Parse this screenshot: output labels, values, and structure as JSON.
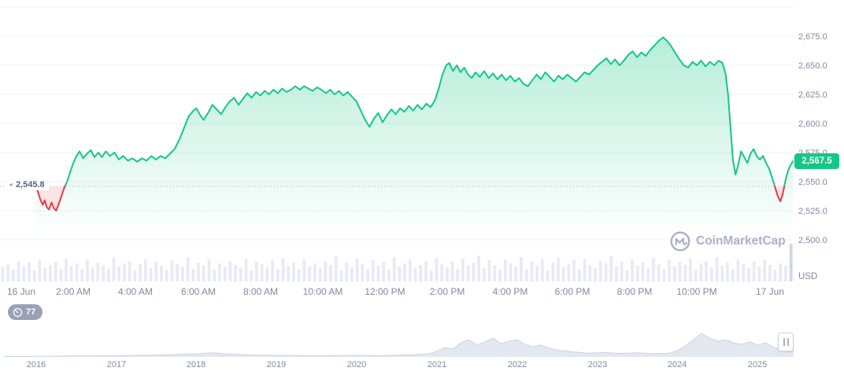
{
  "chart_data": {
    "type": "area",
    "unit": "USD",
    "last_price": 2567.5,
    "last_price_label": "2,567.5",
    "open_price": 2545.8,
    "open_price_label": "2,545.8",
    "legend_position": "none",
    "grid": true,
    "ylim": [
      2496.6,
      2706.1
    ],
    "xlim_hours": [
      -0.35,
      25.1
    ],
    "yticks": [
      {
        "value": 2675,
        "label": "2,675.0"
      },
      {
        "value": 2650,
        "label": "2,650.0"
      },
      {
        "value": 2625,
        "label": "2,625.0"
      },
      {
        "value": 2600,
        "label": "2,600.0"
      },
      {
        "value": 2575,
        "label": "2,575.0"
      },
      {
        "value": 2550,
        "label": "2,550.0"
      },
      {
        "value": 2525,
        "label": "2,525.0"
      },
      {
        "value": 2500,
        "label": "2,500.0"
      }
    ],
    "ygrid": [
      2700,
      2675,
      2650,
      2625,
      2600,
      2575,
      2550,
      2525,
      2500
    ],
    "xticks": [
      {
        "t": 0.32,
        "label": "16 Jun"
      },
      {
        "t": 2,
        "label": "2:00 AM"
      },
      {
        "t": 4,
        "label": "4:00 AM"
      },
      {
        "t": 6,
        "label": "6:00 AM"
      },
      {
        "t": 8,
        "label": "8:00 AM"
      },
      {
        "t": 10,
        "label": "10:00 AM"
      },
      {
        "t": 12,
        "label": "12:00 PM"
      },
      {
        "t": 14,
        "label": "2:00 PM"
      },
      {
        "t": 16,
        "label": "4:00 PM"
      },
      {
        "t": 18,
        "label": "6:00 PM"
      },
      {
        "t": 20,
        "label": "8:00 PM"
      },
      {
        "t": 22,
        "label": "10:00 PM"
      },
      {
        "t": 24.35,
        "label": "17 Jun"
      }
    ],
    "series": [
      [
        0.8,
        2546
      ],
      [
        0.88,
        2540
      ],
      [
        0.95,
        2534
      ],
      [
        1.02,
        2530
      ],
      [
        1.08,
        2534
      ],
      [
        1.15,
        2528
      ],
      [
        1.22,
        2526
      ],
      [
        1.3,
        2532
      ],
      [
        1.38,
        2527
      ],
      [
        1.45,
        2525
      ],
      [
        1.52,
        2530
      ],
      [
        1.6,
        2536
      ],
      [
        1.7,
        2544
      ],
      [
        1.8,
        2550
      ],
      [
        1.9,
        2558
      ],
      [
        2.0,
        2566
      ],
      [
        2.1,
        2572
      ],
      [
        2.2,
        2576
      ],
      [
        2.32,
        2570
      ],
      [
        2.44,
        2574
      ],
      [
        2.56,
        2577
      ],
      [
        2.68,
        2571
      ],
      [
        2.8,
        2575
      ],
      [
        2.92,
        2571
      ],
      [
        3.04,
        2576
      ],
      [
        3.18,
        2572
      ],
      [
        3.32,
        2575
      ],
      [
        3.46,
        2569
      ],
      [
        3.6,
        2572
      ],
      [
        3.75,
        2568
      ],
      [
        3.9,
        2570
      ],
      [
        4.05,
        2567
      ],
      [
        4.2,
        2570
      ],
      [
        4.35,
        2568
      ],
      [
        4.5,
        2572
      ],
      [
        4.65,
        2569
      ],
      [
        4.8,
        2572
      ],
      [
        4.95,
        2570
      ],
      [
        5.1,
        2574
      ],
      [
        5.25,
        2578
      ],
      [
        5.4,
        2586
      ],
      [
        5.55,
        2596
      ],
      [
        5.7,
        2606
      ],
      [
        5.85,
        2611
      ],
      [
        5.95,
        2613
      ],
      [
        6.05,
        2608
      ],
      [
        6.18,
        2603
      ],
      [
        6.32,
        2609
      ],
      [
        6.46,
        2616
      ],
      [
        6.6,
        2612
      ],
      [
        6.74,
        2608
      ],
      [
        6.88,
        2614
      ],
      [
        7.02,
        2619
      ],
      [
        7.16,
        2622
      ],
      [
        7.3,
        2616
      ],
      [
        7.44,
        2621
      ],
      [
        7.58,
        2626
      ],
      [
        7.72,
        2622
      ],
      [
        7.86,
        2627
      ],
      [
        8.0,
        2624
      ],
      [
        8.14,
        2628
      ],
      [
        8.28,
        2625
      ],
      [
        8.42,
        2629
      ],
      [
        8.56,
        2626
      ],
      [
        8.7,
        2630
      ],
      [
        8.84,
        2627
      ],
      [
        8.98,
        2629
      ],
      [
        9.12,
        2632
      ],
      [
        9.26,
        2629
      ],
      [
        9.4,
        2632
      ],
      [
        9.54,
        2630
      ],
      [
        9.68,
        2628
      ],
      [
        9.82,
        2631
      ],
      [
        9.96,
        2629
      ],
      [
        10.1,
        2626
      ],
      [
        10.24,
        2629
      ],
      [
        10.38,
        2625
      ],
      [
        10.52,
        2628
      ],
      [
        10.66,
        2624
      ],
      [
        10.8,
        2627
      ],
      [
        10.94,
        2623
      ],
      [
        11.08,
        2619
      ],
      [
        11.22,
        2611
      ],
      [
        11.36,
        2603
      ],
      [
        11.5,
        2597
      ],
      [
        11.64,
        2604
      ],
      [
        11.78,
        2609
      ],
      [
        11.92,
        2601
      ],
      [
        12.06,
        2607
      ],
      [
        12.2,
        2612
      ],
      [
        12.34,
        2608
      ],
      [
        12.48,
        2613
      ],
      [
        12.62,
        2610
      ],
      [
        12.76,
        2615
      ],
      [
        12.9,
        2611
      ],
      [
        13.04,
        2616
      ],
      [
        13.18,
        2612
      ],
      [
        13.32,
        2617
      ],
      [
        13.46,
        2614
      ],
      [
        13.6,
        2620
      ],
      [
        13.72,
        2630
      ],
      [
        13.84,
        2642
      ],
      [
        13.96,
        2650
      ],
      [
        14.06,
        2652
      ],
      [
        14.18,
        2645
      ],
      [
        14.3,
        2650
      ],
      [
        14.42,
        2644
      ],
      [
        14.54,
        2648
      ],
      [
        14.66,
        2642
      ],
      [
        14.78,
        2639
      ],
      [
        14.9,
        2644
      ],
      [
        15.04,
        2640
      ],
      [
        15.18,
        2645
      ],
      [
        15.32,
        2639
      ],
      [
        15.46,
        2643
      ],
      [
        15.6,
        2638
      ],
      [
        15.74,
        2642
      ],
      [
        15.88,
        2637
      ],
      [
        16.02,
        2641
      ],
      [
        16.16,
        2636
      ],
      [
        16.3,
        2639
      ],
      [
        16.44,
        2634
      ],
      [
        16.58,
        2632
      ],
      [
        16.72,
        2637
      ],
      [
        16.86,
        2642
      ],
      [
        17.0,
        2638
      ],
      [
        17.14,
        2644
      ],
      [
        17.28,
        2640
      ],
      [
        17.42,
        2636
      ],
      [
        17.56,
        2641
      ],
      [
        17.7,
        2638
      ],
      [
        17.84,
        2642
      ],
      [
        17.98,
        2639
      ],
      [
        18.12,
        2636
      ],
      [
        18.26,
        2640
      ],
      [
        18.4,
        2644
      ],
      [
        18.54,
        2642
      ],
      [
        18.68,
        2646
      ],
      [
        18.82,
        2650
      ],
      [
        18.96,
        2653
      ],
      [
        19.1,
        2656
      ],
      [
        19.24,
        2651
      ],
      [
        19.38,
        2655
      ],
      [
        19.52,
        2650
      ],
      [
        19.66,
        2654
      ],
      [
        19.8,
        2659
      ],
      [
        19.94,
        2662
      ],
      [
        20.08,
        2657
      ],
      [
        20.22,
        2661
      ],
      [
        20.36,
        2658
      ],
      [
        20.5,
        2663
      ],
      [
        20.64,
        2667
      ],
      [
        20.78,
        2671
      ],
      [
        20.92,
        2674
      ],
      [
        21.04,
        2671
      ],
      [
        21.16,
        2667
      ],
      [
        21.3,
        2661
      ],
      [
        21.44,
        2655
      ],
      [
        21.58,
        2650
      ],
      [
        21.72,
        2648
      ],
      [
        21.86,
        2653
      ],
      [
        22.0,
        2650
      ],
      [
        22.14,
        2654
      ],
      [
        22.28,
        2649
      ],
      [
        22.42,
        2653
      ],
      [
        22.56,
        2650
      ],
      [
        22.7,
        2654
      ],
      [
        22.82,
        2652
      ],
      [
        22.92,
        2643
      ],
      [
        23.0,
        2625
      ],
      [
        23.08,
        2596
      ],
      [
        23.16,
        2568
      ],
      [
        23.24,
        2556
      ],
      [
        23.32,
        2564
      ],
      [
        23.42,
        2576
      ],
      [
        23.52,
        2571
      ],
      [
        23.62,
        2566
      ],
      [
        23.72,
        2574
      ],
      [
        23.82,
        2578
      ],
      [
        23.92,
        2572
      ],
      [
        24.02,
        2569
      ],
      [
        24.12,
        2572
      ],
      [
        24.22,
        2566
      ],
      [
        24.32,
        2561
      ],
      [
        24.42,
        2553
      ],
      [
        24.52,
        2544
      ],
      [
        24.6,
        2537
      ],
      [
        24.68,
        2533
      ],
      [
        24.76,
        2540
      ],
      [
        24.84,
        2551
      ],
      [
        24.92,
        2559
      ],
      [
        25.0,
        2564
      ],
      [
        25.08,
        2567.5
      ]
    ],
    "volume": [
      18,
      22,
      15,
      26,
      19,
      24,
      14,
      28,
      17,
      21,
      25,
      16,
      29,
      20,
      23,
      15,
      27,
      18,
      24,
      21,
      16,
      30,
      19,
      23,
      26,
      14,
      22,
      28,
      17,
      25,
      20,
      15,
      27,
      22,
      18,
      31,
      16,
      24,
      20,
      28,
      15,
      23,
      19,
      26,
      21,
      17,
      29,
      14,
      25,
      22,
      18,
      27,
      16,
      30,
      20,
      24,
      15,
      28,
      19,
      23,
      17,
      26,
      21,
      32,
      14,
      24,
      18,
      29,
      22,
      16,
      27,
      20,
      25,
      15,
      31,
      19,
      23,
      28,
      17,
      21,
      26,
      14,
      30,
      22,
      18,
      25,
      16,
      29,
      20,
      24,
      33,
      17,
      27,
      21,
      15,
      28,
      23,
      19,
      31,
      16,
      25,
      20,
      28,
      14,
      24,
      30,
      18,
      22,
      27,
      15,
      29,
      21,
      17,
      26,
      23,
      32,
      19,
      25,
      14,
      28,
      20,
      24,
      17,
      30,
      22,
      16,
      27,
      19,
      25,
      21,
      29,
      15,
      23,
      26,
      18,
      31,
      20,
      24,
      16,
      28,
      22,
      17,
      25,
      19,
      27,
      21,
      15,
      23,
      20,
      48
    ],
    "navigator": {
      "years": [
        "2016",
        "2017",
        "2018",
        "2019",
        "2020",
        "2021",
        "2022",
        "2023",
        "2024",
        "2025"
      ],
      "points": [
        [
          2015.6,
          0.02
        ],
        [
          2016,
          0.02
        ],
        [
          2016.5,
          0.03
        ],
        [
          2017,
          0.04
        ],
        [
          2017.5,
          0.06
        ],
        [
          2017.8,
          0.08
        ],
        [
          2018.0,
          0.1
        ],
        [
          2018.2,
          0.13
        ],
        [
          2018.4,
          0.09
        ],
        [
          2018.7,
          0.06
        ],
        [
          2019,
          0.05
        ],
        [
          2019.5,
          0.04
        ],
        [
          2020,
          0.05
        ],
        [
          2020.3,
          0.04
        ],
        [
          2020.7,
          0.07
        ],
        [
          2020.9,
          0.1
        ],
        [
          2021.0,
          0.18
        ],
        [
          2021.1,
          0.3
        ],
        [
          2021.2,
          0.25
        ],
        [
          2021.3,
          0.45
        ],
        [
          2021.4,
          0.55
        ],
        [
          2021.5,
          0.38
        ],
        [
          2021.6,
          0.48
        ],
        [
          2021.7,
          0.6
        ],
        [
          2021.8,
          0.42
        ],
        [
          2021.9,
          0.5
        ],
        [
          2022.0,
          0.55
        ],
        [
          2022.1,
          0.4
        ],
        [
          2022.2,
          0.32
        ],
        [
          2022.3,
          0.38
        ],
        [
          2022.4,
          0.28
        ],
        [
          2022.5,
          0.22
        ],
        [
          2022.7,
          0.16
        ],
        [
          2022.9,
          0.12
        ],
        [
          2023.1,
          0.14
        ],
        [
          2023.3,
          0.11
        ],
        [
          2023.5,
          0.13
        ],
        [
          2023.7,
          0.1
        ],
        [
          2023.9,
          0.12
        ],
        [
          2024.0,
          0.2
        ],
        [
          2024.1,
          0.35
        ],
        [
          2024.2,
          0.55
        ],
        [
          2024.3,
          0.75
        ],
        [
          2024.4,
          0.6
        ],
        [
          2024.5,
          0.5
        ],
        [
          2024.6,
          0.55
        ],
        [
          2024.7,
          0.45
        ],
        [
          2024.8,
          0.4
        ],
        [
          2024.9,
          0.48
        ],
        [
          2025.0,
          0.38
        ],
        [
          2025.1,
          0.45
        ],
        [
          2025.2,
          0.3
        ],
        [
          2025.3,
          0.25
        ],
        [
          2025.4,
          0.35
        ],
        [
          2025.45,
          0.2
        ]
      ]
    },
    "colors": {
      "up": "#16c784",
      "down": "#ea3943",
      "grid": "#eff2f5",
      "axis_text": "#808a9d",
      "volume": "#e7ebf3",
      "volume_last": "#cfd7e6",
      "area_top": "rgba(22,199,132,0.32)",
      "area_bottom": "rgba(22,199,132,0)",
      "down_fill": "rgba(234,57,67,0.14)",
      "dotted": "#a8b1c2",
      "nav_fill": "#e3e8f0",
      "nav_stroke": "#ccd4e2"
    }
  },
  "watermark": {
    "text": "CoinMarketCap"
  },
  "badges": {
    "watch_count": "77"
  }
}
